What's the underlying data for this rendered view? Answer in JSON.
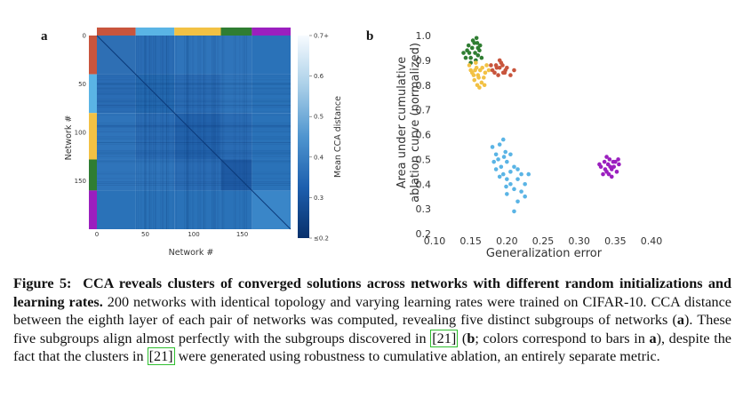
{
  "panel_a": {
    "letter": "a"
  },
  "panel_b": {
    "letter": "b"
  },
  "chart_data": [
    {
      "type": "heatmap",
      "panel": "a",
      "xlabel": "Network #",
      "ylabel": "Network #",
      "x_ticks": [
        "0",
        "50",
        "100",
        "150"
      ],
      "y_ticks": [
        "0",
        "50",
        "100",
        "150"
      ],
      "n": 200,
      "cluster_bounds": [
        0,
        40,
        80,
        128,
        160,
        200
      ],
      "cluster_colors": [
        "#c8553d",
        "#5ab4e5",
        "#f2c144",
        "#2f7d32",
        "#9b1fbf"
      ],
      "colorbar": {
        "label": "Mean CCA distance",
        "ticks": [
          "0.7+",
          "0.6",
          "0.5",
          "0.4",
          "0.3",
          "≤0.2"
        ],
        "range": [
          0.2,
          0.7
        ]
      }
    },
    {
      "type": "scatter",
      "panel": "b",
      "xlabel": "Generalization error",
      "ylabel": "Area under cumulative ablation curve (normalized)",
      "ylabel_lines": [
        "Area under cumulative",
        "ablation curve (normalized)"
      ],
      "xlim": [
        0.1,
        0.4
      ],
      "ylim": [
        0.2,
        1.0
      ],
      "x_ticks": [
        "0.10",
        "0.15",
        "0.20",
        "0.25",
        "0.30",
        "0.35",
        "0.40"
      ],
      "y_ticks": [
        "0.2",
        "0.3",
        "0.4",
        "0.5",
        "0.6",
        "0.7",
        "0.8",
        "0.9",
        "1.0"
      ],
      "series": [
        {
          "color": "#2f7d32",
          "points": [
            [
              0.148,
              0.93
            ],
            [
              0.152,
              0.95
            ],
            [
              0.155,
              0.97
            ],
            [
              0.158,
              0.99
            ],
            [
              0.15,
              0.91
            ],
            [
              0.16,
              0.92
            ],
            [
              0.163,
              0.96
            ],
            [
              0.145,
              0.94
            ],
            [
              0.157,
              0.9
            ],
            [
              0.14,
              0.93
            ],
            [
              0.153,
              0.98
            ],
            [
              0.162,
              0.94
            ],
            [
              0.147,
              0.96
            ],
            [
              0.159,
              0.97
            ],
            [
              0.165,
              0.91
            ],
            [
              0.15,
              0.89
            ],
            [
              0.156,
              0.93
            ],
            [
              0.143,
              0.91
            ],
            [
              0.16,
              0.95
            ]
          ]
        },
        {
          "color": "#f2c144",
          "points": [
            [
              0.152,
              0.85
            ],
            [
              0.158,
              0.87
            ],
            [
              0.16,
              0.84
            ],
            [
              0.155,
              0.82
            ],
            [
              0.163,
              0.86
            ],
            [
              0.165,
              0.81
            ],
            [
              0.17,
              0.85
            ],
            [
              0.157,
              0.89
            ],
            [
              0.15,
              0.86
            ],
            [
              0.162,
              0.79
            ],
            [
              0.168,
              0.83
            ],
            [
              0.172,
              0.88
            ],
            [
              0.159,
              0.8
            ],
            [
              0.166,
              0.87
            ],
            [
              0.154,
              0.84
            ],
            [
              0.175,
              0.86
            ],
            [
              0.161,
              0.83
            ],
            [
              0.148,
              0.88
            ],
            [
              0.169,
              0.8
            ],
            [
              0.156,
              0.86
            ]
          ]
        },
        {
          "color": "#c8553d",
          "points": [
            [
              0.18,
              0.86
            ],
            [
              0.185,
              0.88
            ],
            [
              0.19,
              0.87
            ],
            [
              0.195,
              0.85
            ],
            [
              0.188,
              0.84
            ],
            [
              0.192,
              0.89
            ],
            [
              0.198,
              0.86
            ],
            [
              0.183,
              0.85
            ],
            [
              0.2,
              0.87
            ],
            [
              0.21,
              0.86
            ],
            [
              0.186,
              0.87
            ],
            [
              0.194,
              0.88
            ],
            [
              0.205,
              0.84
            ],
            [
              0.178,
              0.88
            ],
            [
              0.197,
              0.85
            ],
            [
              0.19,
              0.9
            ]
          ]
        },
        {
          "color": "#5ab4e5",
          "points": [
            [
              0.18,
              0.55
            ],
            [
              0.185,
              0.52
            ],
            [
              0.19,
              0.56
            ],
            [
              0.195,
              0.58
            ],
            [
              0.188,
              0.5
            ],
            [
              0.192,
              0.47
            ],
            [
              0.198,
              0.53
            ],
            [
              0.2,
              0.49
            ],
            [
              0.205,
              0.45
            ],
            [
              0.185,
              0.46
            ],
            [
              0.195,
              0.44
            ],
            [
              0.21,
              0.47
            ],
            [
              0.2,
              0.42
            ],
            [
              0.205,
              0.4
            ],
            [
              0.21,
              0.38
            ],
            [
              0.215,
              0.42
            ],
            [
              0.22,
              0.37
            ],
            [
              0.2,
              0.36
            ],
            [
              0.215,
              0.33
            ],
            [
              0.21,
              0.29
            ],
            [
              0.225,
              0.35
            ],
            [
              0.22,
              0.44
            ],
            [
              0.19,
              0.43
            ],
            [
              0.182,
              0.49
            ],
            [
              0.196,
              0.51
            ],
            [
              0.225,
              0.4
            ],
            [
              0.205,
              0.52
            ],
            [
              0.23,
              0.44
            ],
            [
              0.215,
              0.46
            ],
            [
              0.199,
              0.39
            ]
          ]
        },
        {
          "color": "#9b1fbf",
          "points": [
            [
              0.33,
              0.47
            ],
            [
              0.335,
              0.49
            ],
            [
              0.34,
              0.48
            ],
            [
              0.345,
              0.46
            ],
            [
              0.338,
              0.45
            ],
            [
              0.342,
              0.5
            ],
            [
              0.348,
              0.47
            ],
            [
              0.333,
              0.44
            ],
            [
              0.35,
              0.49
            ],
            [
              0.355,
              0.48
            ],
            [
              0.345,
              0.43
            ],
            [
              0.338,
              0.51
            ],
            [
              0.352,
              0.45
            ],
            [
              0.328,
              0.48
            ],
            [
              0.343,
              0.47
            ],
            [
              0.336,
              0.46
            ],
            [
              0.347,
              0.49
            ],
            [
              0.354,
              0.5
            ],
            [
              0.341,
              0.44
            ]
          ]
        }
      ]
    }
  ],
  "caption": {
    "fig_label": "Figure 5:",
    "title": "CCA reveals clusters of converged solutions across networks with different random initializations and learning rates.",
    "t1": " 200 networks with identical topology and varying learning rates were trained on CIFAR-10. CCA distance between the eighth layer of each pair of networks was computed, revealing five distinct subgroups of networks (",
    "a1": "a",
    "t2": "). These five subgroups align almost perfectly with the subgroups discovered in ",
    "ref1": "[21]",
    "t3": " (",
    "b1": "b",
    "t4": "; colors correspond to bars in ",
    "a2": "a",
    "t5": "), despite the fact that the clusters in ",
    "ref2": "[21]",
    "t6": " were generated using robustness to cumulative ablation, an entirely separate metric."
  }
}
